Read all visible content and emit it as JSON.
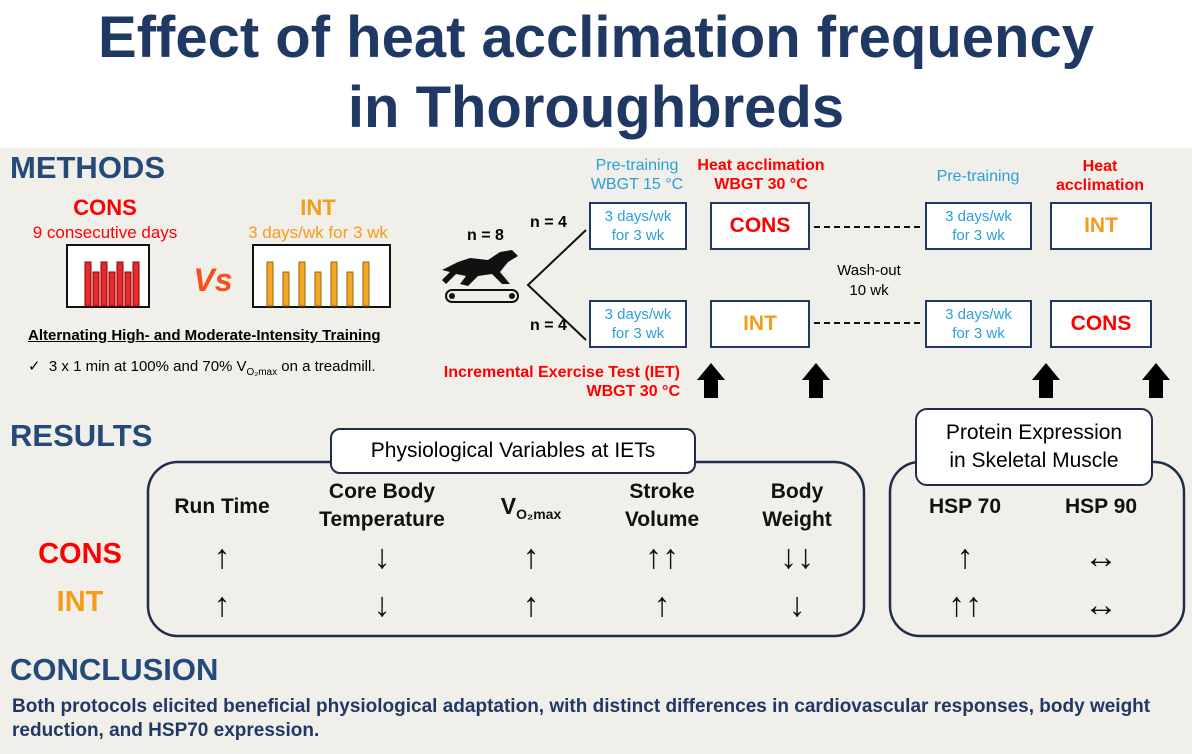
{
  "title": [
    "Effect of heat acclimation frequency",
    "in Thoroughbreds"
  ],
  "methods": {
    "heading": "METHODS",
    "cons": {
      "label": "CONS",
      "desc": "9 consecutive days"
    },
    "int": {
      "label": "INT",
      "desc": "3 days/wk for 3 wk"
    },
    "vs": "Vs",
    "training_title": "Alternating High- and Moderate-Intensity Training",
    "training_item": {
      "check": "✓",
      "before": "3 x 1 min at 100% and 70% V",
      "sub": "O₂max",
      "after": " on a treadmill."
    },
    "n_total": "n = 8",
    "n_groups": [
      "n = 4",
      "n = 4"
    ],
    "phases": [
      {
        "title": "Pre-training",
        "subtitle": "WBGT 15 °C"
      },
      {
        "title": "Heat acclimation",
        "subtitle": "WBGT 30 °C"
      },
      {
        "title": "Pre-training"
      },
      {
        "title": "Heat acclimation"
      }
    ],
    "rows": [
      [
        "3 days/wk for 3 wk",
        "CONS",
        "3 days/wk for 3 wk",
        "INT"
      ],
      [
        "3 days/wk for 3 wk",
        "INT",
        "3 days/wk for 3 wk",
        "CONS"
      ]
    ],
    "washout": [
      "Wash-out",
      "10 wk"
    ],
    "iet": [
      "Incremental Exercise Test (IET)",
      "WBGT 30 °C"
    ]
  },
  "results": {
    "heading": "RESULTS",
    "physio": {
      "title": "Physiological Variables at IETs",
      "columns": [
        [
          "Run Time"
        ],
        [
          "Core Body",
          "Temperature"
        ],
        {
          "base": "V",
          "sub": "O₂max"
        },
        [
          "Stroke",
          "Volume"
        ],
        [
          "Body",
          "Weight"
        ]
      ],
      "rows": [
        {
          "label": "CONS",
          "cells": [
            "↑",
            "↓",
            "↑",
            "↑↑",
            "↓↓"
          ]
        },
        {
          "label": "INT",
          "cells": [
            "↑",
            "↓",
            "↑",
            "↑",
            "↓"
          ]
        }
      ]
    },
    "protein": {
      "title": [
        "Protein Expression",
        "in Skeletal Muscle"
      ],
      "columns": [
        "HSP 70",
        "HSP 90"
      ],
      "rows": [
        [
          "↑",
          "↔"
        ],
        [
          "↑↑",
          "↔"
        ]
      ]
    }
  },
  "conclusion": {
    "heading": "CONCLUSION",
    "text": "Both protocols elicited beneficial physiological adaptation, with distinct differences in cardiovascular responses, body weight reduction, and HSP70 expression."
  }
}
